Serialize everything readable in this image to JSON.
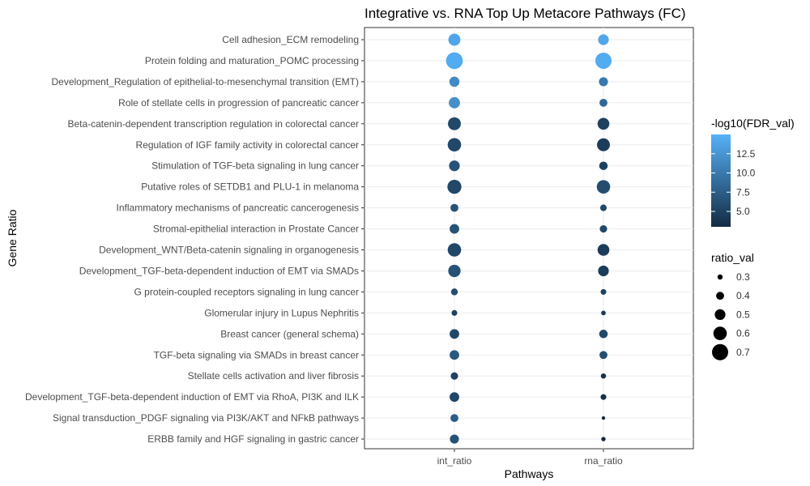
{
  "chart_data": {
    "type": "scatter",
    "title": "Integrative vs. RNA Top Up Metacore Pathways (FC)",
    "xlabel": "Pathways",
    "ylabel": "Gene Ratio",
    "x_categories": [
      "int_ratio",
      "rna_ratio"
    ],
    "y_categories": [
      "Cell adhesion_ECM remodeling",
      "Protein folding and maturation_POMC processing",
      "Development_Regulation of epithelial-to-mesenchymal transition (EMT)",
      "Role of stellate cells in progression of pancreatic cancer",
      "Beta-catenin-dependent transcription regulation in colorectal cancer",
      "Regulation of IGF family activity in colorectal cancer",
      "Stimulation of TGF-beta signaling in lung cancer",
      "Putative roles of SETDB1 and PLU-1 in melanoma",
      "Inflammatory mechanisms of pancreatic cancerogenesis",
      "Stromal-epithelial interaction in Prostate Cancer",
      "Development_WNT/Beta-catenin signaling in organogenesis",
      "Development_TGF-beta-dependent induction of EMT via SMADs",
      "G protein-coupled receptors signaling in lung cancer",
      "Glomerular injury in Lupus Nephritis",
      "Breast cancer (general schema)",
      "TGF-beta signaling via SMADs in breast cancer",
      "Stellate cells activation and liver fibrosis",
      "Development_TGF-beta-dependent induction of EMT via RhoA,  PI3K and ILK",
      "Signal transduction_PDGF signaling via PI3K/AKT and NFkB pathways",
      "ERBB family and HGF signaling in gastric cancer"
    ],
    "series": [
      {
        "x": "int_ratio",
        "ratio_val": [
          0.55,
          0.72,
          0.48,
          0.52,
          0.58,
          0.6,
          0.5,
          0.62,
          0.4,
          0.46,
          0.6,
          0.56,
          0.36,
          0.32,
          0.46,
          0.46,
          0.38,
          0.46,
          0.4,
          0.44
        ],
        "fdr_val": [
          14.0,
          14.5,
          11.5,
          12.0,
          5.5,
          5.5,
          6.5,
          5.5,
          6.5,
          6.5,
          5.5,
          6.5,
          6.0,
          5.0,
          5.5,
          7.0,
          5.0,
          5.5,
          7.5,
          6.5
        ]
      },
      {
        "x": "rna_ratio",
        "ratio_val": [
          0.5,
          0.7,
          0.44,
          0.4,
          0.54,
          0.58,
          0.42,
          0.6,
          0.35,
          0.38,
          0.54,
          0.5,
          0.32,
          0.28,
          0.42,
          0.4,
          0.3,
          0.32,
          0.24,
          0.27
        ],
        "fdr_val": [
          14.0,
          14.5,
          10.0,
          8.5,
          5.0,
          4.5,
          5.0,
          6.0,
          5.5,
          5.5,
          4.5,
          4.5,
          5.0,
          4.0,
          5.5,
          6.0,
          3.5,
          3.5,
          3.0,
          3.0
        ]
      }
    ],
    "color_legend": {
      "title": "-log10(FDR_val)",
      "ticks": [
        "5.0",
        "7.5",
        "10.0",
        "12.5"
      ],
      "range": [
        3,
        15
      ],
      "low_color": "#132B43",
      "high_color": "#56B1F7"
    },
    "size_legend": {
      "title": "ratio_val",
      "ticks": [
        "0.3",
        "0.4",
        "0.5",
        "0.6",
        "0.7"
      ]
    },
    "grid": true,
    "legend_position": "right"
  }
}
